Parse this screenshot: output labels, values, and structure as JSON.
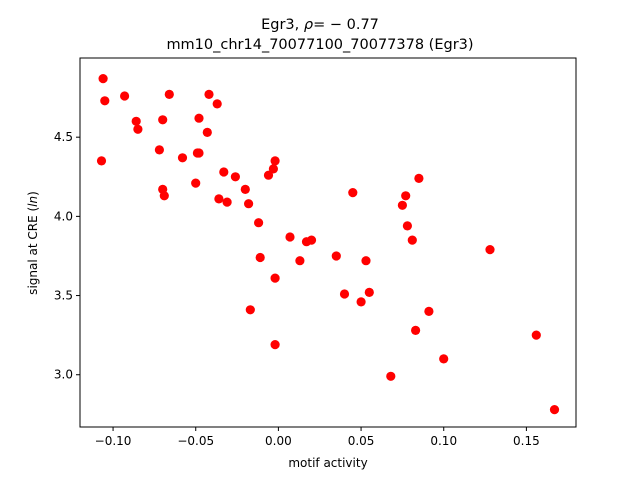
{
  "chart_data": {
    "type": "scatter",
    "title_prefix": "Egr3, ",
    "title_rho_symbol": "ρ",
    "title_rho_text": "= − 0.77",
    "subtitle": "mm10_chr14_70077100_70077378 (Egr3)",
    "xlabel": "motif activity",
    "ylabel_prefix": "signal at CRE (",
    "ylabel_italic": "ln",
    "ylabel_suffix": ")",
    "xlim": [
      -0.12,
      0.18
    ],
    "ylim": [
      2.67,
      5.0
    ],
    "xticks": [
      -0.1,
      -0.05,
      0.0,
      0.05,
      0.1,
      0.15
    ],
    "xtick_labels": [
      "−0.10",
      "−0.05",
      "0.00",
      "0.05",
      "0.10",
      "0.15"
    ],
    "yticks": [
      3.0,
      3.5,
      4.0,
      4.5
    ],
    "ytick_labels": [
      "3.0",
      "3.5",
      "4.0",
      "4.5"
    ],
    "marker_color": "#ff0000",
    "grid": false,
    "points": [
      [
        -0.106,
        4.87
      ],
      [
        -0.105,
        4.73
      ],
      [
        -0.107,
        4.35
      ],
      [
        -0.093,
        4.76
      ],
      [
        -0.086,
        4.6
      ],
      [
        -0.085,
        4.55
      ],
      [
        -0.07,
        4.61
      ],
      [
        -0.066,
        4.77
      ],
      [
        -0.072,
        4.42
      ],
      [
        -0.07,
        4.17
      ],
      [
        -0.069,
        4.13
      ],
      [
        -0.058,
        4.37
      ],
      [
        -0.048,
        4.62
      ],
      [
        -0.042,
        4.77
      ],
      [
        -0.037,
        4.71
      ],
      [
        -0.043,
        4.53
      ],
      [
        -0.049,
        4.4
      ],
      [
        -0.048,
        4.4
      ],
      [
        -0.05,
        4.21
      ],
      [
        -0.033,
        4.28
      ],
      [
        -0.036,
        4.11
      ],
      [
        -0.031,
        4.09
      ],
      [
        -0.026,
        4.25
      ],
      [
        -0.02,
        4.17
      ],
      [
        -0.018,
        4.08
      ],
      [
        -0.012,
        3.96
      ],
      [
        -0.011,
        3.74
      ],
      [
        -0.017,
        3.41
      ],
      [
        -0.006,
        4.26
      ],
      [
        -0.003,
        4.3
      ],
      [
        -0.002,
        4.35
      ],
      [
        -0.002,
        3.61
      ],
      [
        -0.002,
        3.19
      ],
      [
        0.007,
        3.87
      ],
      [
        0.013,
        3.72
      ],
      [
        0.017,
        3.84
      ],
      [
        0.02,
        3.85
      ],
      [
        0.035,
        3.75
      ],
      [
        0.04,
        3.51
      ],
      [
        0.045,
        4.15
      ],
      [
        0.05,
        3.46
      ],
      [
        0.053,
        3.72
      ],
      [
        0.055,
        3.52
      ],
      [
        0.068,
        2.99
      ],
      [
        0.075,
        4.07
      ],
      [
        0.077,
        4.13
      ],
      [
        0.078,
        3.94
      ],
      [
        0.081,
        3.85
      ],
      [
        0.083,
        3.28
      ],
      [
        0.085,
        4.24
      ],
      [
        0.091,
        3.4
      ],
      [
        0.1,
        3.1
      ],
      [
        0.128,
        3.79
      ],
      [
        0.156,
        3.25
      ],
      [
        0.167,
        2.78
      ]
    ]
  }
}
